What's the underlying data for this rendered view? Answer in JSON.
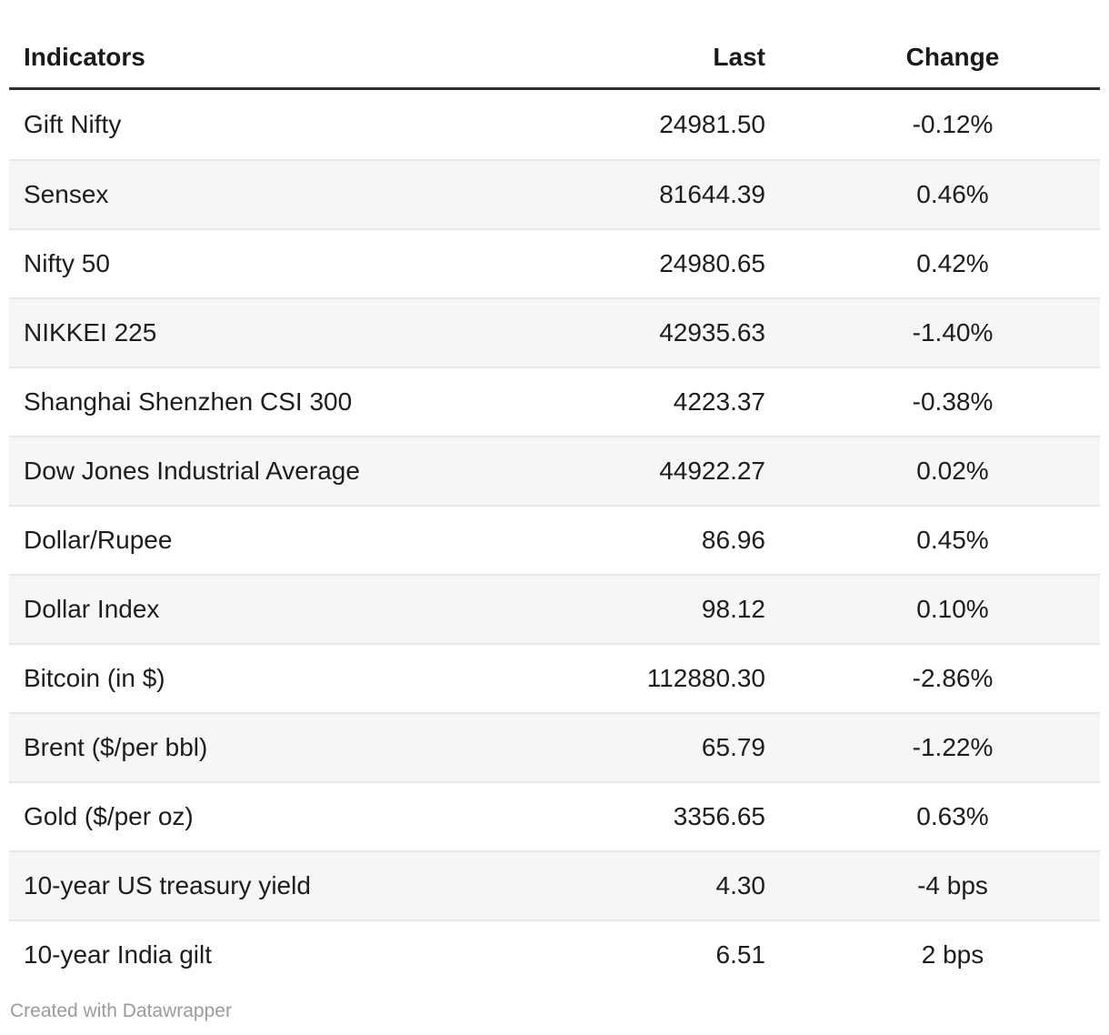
{
  "chart_data": {
    "type": "table",
    "title": "",
    "columns": [
      "Indicators",
      "Last",
      "Change"
    ],
    "column_align": [
      "left",
      "right",
      "center"
    ],
    "rows": [
      [
        "Gift Nifty",
        "24981.50",
        "-0.12%"
      ],
      [
        "Sensex",
        "81644.39",
        "0.46%"
      ],
      [
        "Nifty 50",
        "24980.65",
        "0.42%"
      ],
      [
        "NIKKEI 225",
        "42935.63",
        "-1.40%"
      ],
      [
        "Shanghai Shenzhen CSI 300",
        "4223.37",
        "-0.38%"
      ],
      [
        "Dow Jones Industrial Average",
        "44922.27",
        "0.02%"
      ],
      [
        "Dollar/Rupee",
        "86.96",
        "0.45%"
      ],
      [
        "Dollar Index",
        "98.12",
        "0.10%"
      ],
      [
        "Bitcoin (in $)",
        "112880.30",
        "-2.86%"
      ],
      [
        "Brent ($/per bbl)",
        "65.79",
        "-1.22%"
      ],
      [
        "Gold ($/per oz)",
        "3356.65",
        "0.63%"
      ],
      [
        "10-year US treasury yield",
        "4.30",
        "-4 bps"
      ],
      [
        "10-year India gilt",
        "6.51",
        "2 bps"
      ]
    ],
    "layout_hints": {
      "zebra_stripes": true,
      "stripe_rows": "even",
      "header_rule": true,
      "grid": false
    }
  },
  "footer": {
    "credit": "Created with Datawrapper"
  },
  "colors": {
    "background": "#ffffff",
    "text": "#1d1d1d",
    "header_text": "#1a1a1a",
    "header_rule": "#2f2f2f",
    "row_stripe": "#f6f6f6",
    "row_separator": "#e8e8e8",
    "credit_text": "#9b9b9b"
  }
}
